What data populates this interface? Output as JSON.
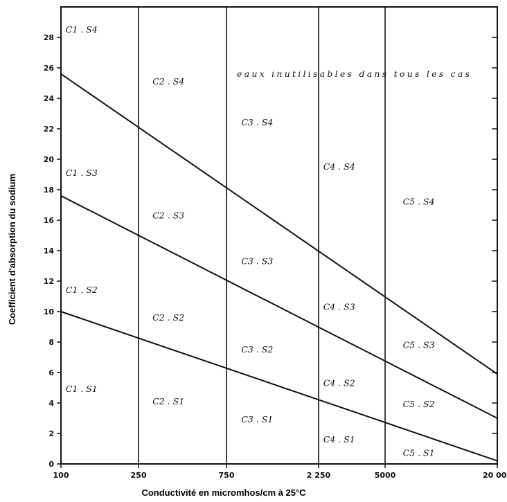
{
  "chart_data": {
    "type": "line",
    "title": "",
    "xlabel": "Conductivité en micromhos/cm à 25°C",
    "ylabel": "Coefficient d'absorption du sodium",
    "xlim": [
      100,
      20000
    ],
    "ylim": [
      0,
      30
    ],
    "x_tick_values": [
      100,
      250,
      750,
      2250,
      5000,
      20000
    ],
    "x_tick_labels": [
      "100",
      "250",
      "750",
      "2 250",
      "5000",
      "20 000"
    ],
    "y_ticks": [
      0,
      2,
      4,
      6,
      8,
      10,
      12,
      14,
      16,
      18,
      20,
      22,
      24,
      26,
      28
    ],
    "vertical_lines_at": [
      250,
      750,
      2250,
      5000
    ],
    "grid": false,
    "series": [
      {
        "x": [
          100,
          20000
        ],
        "y": [
          10,
          0.2
        ]
      },
      {
        "x": [
          100,
          20000
        ],
        "y": [
          17.6,
          3
        ]
      },
      {
        "x": [
          100,
          20000
        ],
        "y": [
          25.6,
          5.9
        ]
      }
    ],
    "zone_labels": [
      {
        "text": "C1 . S4",
        "x": 140,
        "y": 28.5
      },
      {
        "text": "C1 . S3",
        "x": 140,
        "y": 19.1
      },
      {
        "text": "C1 . S2",
        "x": 140,
        "y": 11.4
      },
      {
        "text": "C1 . S1",
        "x": 140,
        "y": 4.9
      },
      {
        "text": "C2 . S4",
        "x": 420,
        "y": 25.1
      },
      {
        "text": "C2 . S3",
        "x": 420,
        "y": 16.3
      },
      {
        "text": "C2 . S2",
        "x": 420,
        "y": 9.6
      },
      {
        "text": "C2 . S1",
        "x": 420,
        "y": 4.1
      },
      {
        "text": "C3 . S4",
        "x": 1250,
        "y": 22.4
      },
      {
        "text": "C3 . S3",
        "x": 1250,
        "y": 13.3
      },
      {
        "text": "C3 . S2",
        "x": 1250,
        "y": 7.5
      },
      {
        "text": "C3 . S1",
        "x": 1250,
        "y": 2.9
      },
      {
        "text": "C4 . S4",
        "x": 3100,
        "y": 19.5
      },
      {
        "text": "C4 . S3",
        "x": 3100,
        "y": 10.3
      },
      {
        "text": "C4 . S2",
        "x": 3100,
        "y": 5.3
      },
      {
        "text": "C4 . S1",
        "x": 3100,
        "y": 1.6
      },
      {
        "text": "C5 . S4",
        "x": 9500,
        "y": 17.2
      },
      {
        "text": "C5 . S3",
        "x": 9500,
        "y": 7.8
      },
      {
        "text": "C5 . S2",
        "x": 9500,
        "y": 3.9
      },
      {
        "text": "C5 . S1",
        "x": 9500,
        "y": 0.7
      }
    ],
    "annotation": {
      "text": "eaux inutilisables dans tous les cas",
      "x": 1250,
      "y": 25.6
    }
  }
}
